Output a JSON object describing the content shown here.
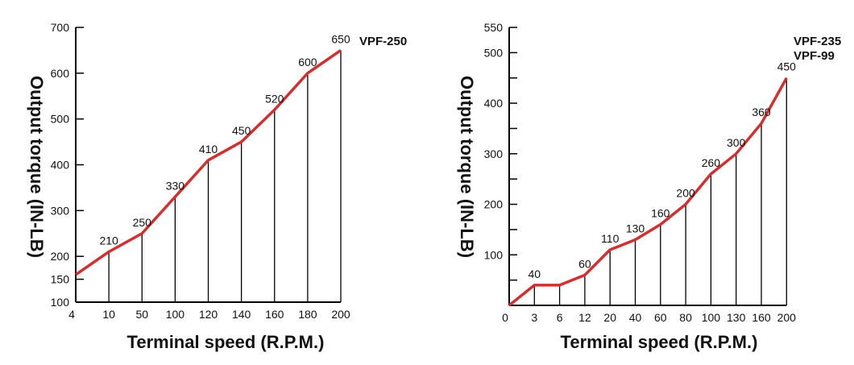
{
  "chart_data": [
    {
      "type": "line",
      "xlabel": "Terminal speed (R.P.M.)",
      "ylabel": "Output torque (IN-LB)",
      "x": [
        "4",
        "10",
        "50",
        "100",
        "120",
        "140",
        "160",
        "180",
        "200"
      ],
      "y_ticks": [
        "100",
        "150",
        "200",
        "300",
        "400",
        "500",
        "600",
        "700"
      ],
      "ylim": [
        100,
        700
      ],
      "series": [
        {
          "name": "VPF-250",
          "values": [
            null,
            210,
            250,
            330,
            410,
            450,
            520,
            600,
            650
          ],
          "labels": [
            "",
            "210",
            "250",
            "330",
            "410",
            "450",
            "520",
            "600",
            "650"
          ],
          "line_values": [
            160,
            210,
            250,
            330,
            410,
            450,
            520,
            600,
            650
          ]
        }
      ],
      "grid": false,
      "line_color": "#d32f2f"
    },
    {
      "type": "line",
      "xlabel": "Terminal speed (R.P.M.)",
      "ylabel": "Output torque (IN-LB)",
      "x": [
        "0",
        "3",
        "6",
        "12",
        "20",
        "40",
        "60",
        "80",
        "100",
        "130",
        "160",
        "200"
      ],
      "y_ticks": [
        "100",
        "200",
        "300",
        "400",
        "500",
        "550"
      ],
      "ylim": [
        0,
        550
      ],
      "series": [
        {
          "name": "VPF-235 VPF-99",
          "name_lines": [
            "VPF-235",
            "VPF-99"
          ],
          "values": [
            0,
            40,
            40,
            60,
            110,
            130,
            160,
            200,
            260,
            300,
            360,
            450
          ],
          "labels": [
            "",
            "40",
            "",
            "60",
            "110",
            "130",
            "160",
            "200",
            "260",
            "300",
            "360",
            "450"
          ]
        }
      ],
      "grid": false,
      "line_color": "#d32f2f"
    }
  ]
}
